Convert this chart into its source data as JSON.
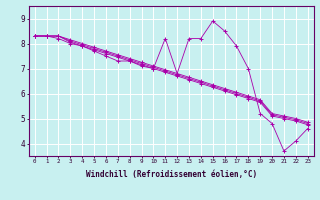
{
  "title": "",
  "xlabel": "Windchill (Refroidissement éolien,°C)",
  "ylabel": "",
  "bg_color": "#c8f0f0",
  "line_color": "#aa00aa",
  "grid_color": "#ffffff",
  "xlim": [
    -0.5,
    23.5
  ],
  "ylim": [
    3.5,
    9.5
  ],
  "yticks": [
    4,
    5,
    6,
    7,
    8,
    9
  ],
  "xticks": [
    0,
    1,
    2,
    3,
    4,
    5,
    6,
    7,
    8,
    9,
    10,
    11,
    12,
    13,
    14,
    15,
    16,
    17,
    18,
    19,
    20,
    21,
    22,
    23
  ],
  "series": [
    [
      8.3,
      8.3,
      8.2,
      8.0,
      7.9,
      7.7,
      7.5,
      7.3,
      7.3,
      7.1,
      7.0,
      8.2,
      6.8,
      8.2,
      8.2,
      8.9,
      8.5,
      7.9,
      7.0,
      5.2,
      4.8,
      3.7,
      4.1,
      4.6
    ],
    [
      8.3,
      8.3,
      8.3,
      8.15,
      8.0,
      7.85,
      7.7,
      7.55,
      7.4,
      7.25,
      7.1,
      6.95,
      6.8,
      6.65,
      6.5,
      6.35,
      6.2,
      6.05,
      5.9,
      5.75,
      5.2,
      5.1,
      5.0,
      4.85
    ],
    [
      8.3,
      8.3,
      8.3,
      8.1,
      7.95,
      7.8,
      7.65,
      7.5,
      7.35,
      7.2,
      7.05,
      6.9,
      6.75,
      6.6,
      6.45,
      6.3,
      6.15,
      6.0,
      5.85,
      5.7,
      5.15,
      5.05,
      4.95,
      4.8
    ],
    [
      8.3,
      8.3,
      8.3,
      8.05,
      7.9,
      7.75,
      7.6,
      7.45,
      7.3,
      7.15,
      7.0,
      6.85,
      6.7,
      6.55,
      6.4,
      6.25,
      6.1,
      5.95,
      5.8,
      5.65,
      5.1,
      5.0,
      4.9,
      4.75
    ]
  ]
}
